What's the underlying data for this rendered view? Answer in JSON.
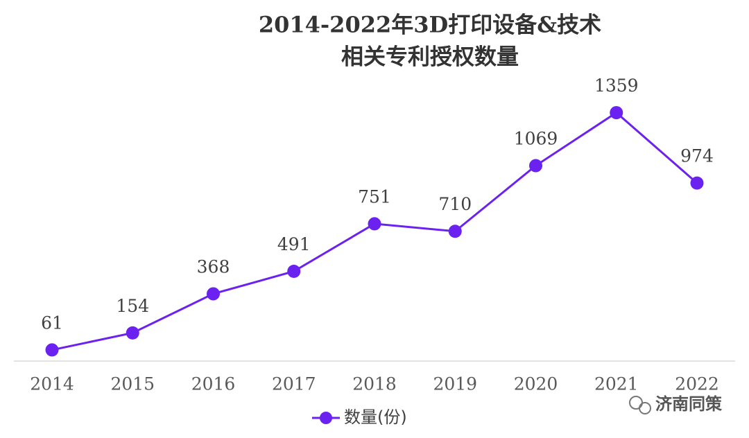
{
  "chart_data": {
    "type": "line",
    "title": [
      "2014-2022年3D打印设备&技术",
      "相关专利授权数量"
    ],
    "categories": [
      "2014",
      "2015",
      "2016",
      "2017",
      "2018",
      "2019",
      "2020",
      "2021",
      "2022"
    ],
    "series": [
      {
        "name": "数量(份)",
        "color": "#6b21f0",
        "values": [
          61,
          154,
          368,
          491,
          751,
          710,
          1069,
          1359,
          974
        ]
      }
    ],
    "ylim": [
      0,
      1600
    ],
    "legend": "bottom",
    "watermark": "济南同策"
  }
}
